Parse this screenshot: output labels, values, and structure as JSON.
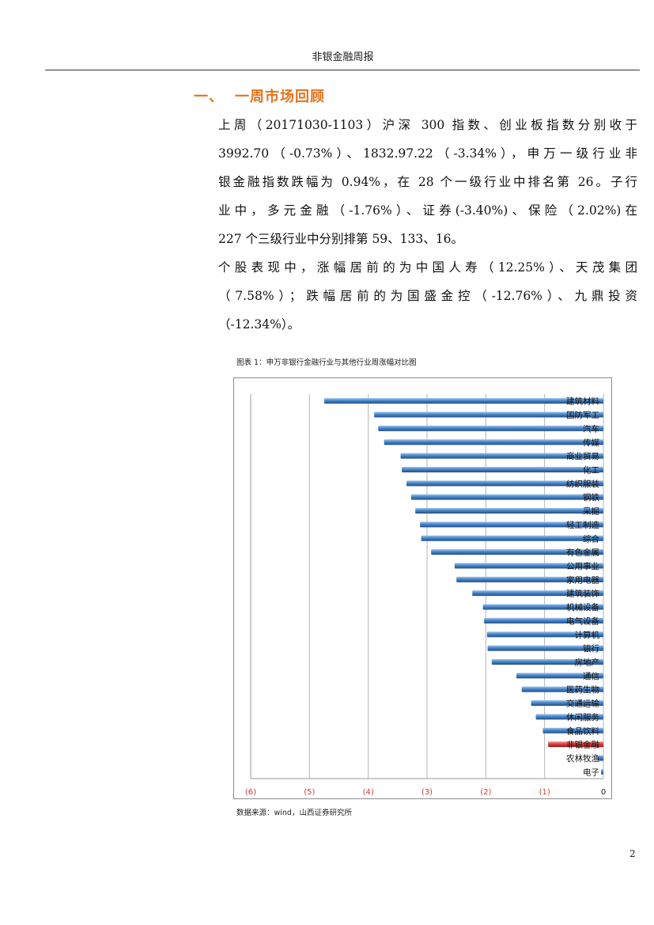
{
  "header": {
    "title": "非银金融周报"
  },
  "section": {
    "number": "一、",
    "title": "一周市场回顾"
  },
  "paragraph1": {
    "lines": [
      "上周（20171030-1103）沪深 300 指数、创业板指数分别收于",
      "3992.70（-0.73%）、1832.97.22（-3.34%），申万一级行业非",
      "银金融指数跌幅为 0.94%，在 28 个一级行业中排名第 26。子行",
      "业中，多元金融（-1.76%）、证券(-3.40%)、保险（2.02%)在",
      "227 个三级行业中分别排第 59、133、16。"
    ]
  },
  "paragraph2": {
    "lines": [
      "个股表现中，涨幅居前的为中国人寿（12.25%）、天茂集团",
      "（7.58%）；跌幅居前的为国盛金控（-12.76%）、九鼎投资",
      "（-12.34%）。"
    ]
  },
  "figure": {
    "caption": "图表 1：申万非银行金融行业与其他行业周涨幅对比图",
    "source": "数据来源：wind，山西证券研究所"
  },
  "chart_data": {
    "type": "bar",
    "orientation": "horizontal",
    "title": "",
    "xlabel": "",
    "ylabel": "",
    "xlim": [
      -6,
      0
    ],
    "xticks": [
      "(6)",
      "(5)",
      "(4)",
      "(3)",
      "(2)",
      "(1)",
      "0"
    ],
    "grid": true,
    "categories": [
      "建筑材料",
      "国防军工",
      "汽车",
      "传媒",
      "商业贸易",
      "化工",
      "纺织服装",
      "钢铁",
      "采掘",
      "轻工制造",
      "综合",
      "有色金属",
      "公用事业",
      "家用电器",
      "建筑装饰",
      "机械设备",
      "电气设备",
      "计算机",
      "银行",
      "房地产",
      "通信",
      "医药生物",
      "交通运输",
      "休闲服务",
      "食品饮料",
      "非银金融",
      "农林牧渔",
      "电子"
    ],
    "values": [
      -4.75,
      -3.9,
      -3.83,
      -3.73,
      -3.45,
      -3.43,
      -3.35,
      -3.27,
      -3.2,
      -3.12,
      -3.1,
      -2.93,
      -2.53,
      -2.5,
      -2.23,
      -2.05,
      -2.03,
      -1.98,
      -1.97,
      -1.9,
      -1.48,
      -1.39,
      -1.23,
      -1.15,
      -1.03,
      -0.94,
      -0.1,
      -0.04
    ],
    "colors": {
      "default": "#4a86c8",
      "highlight": "#e0403f",
      "tick": "#d23a3a"
    },
    "highlight_category": "非银金融"
  },
  "page": {
    "number": "2"
  }
}
